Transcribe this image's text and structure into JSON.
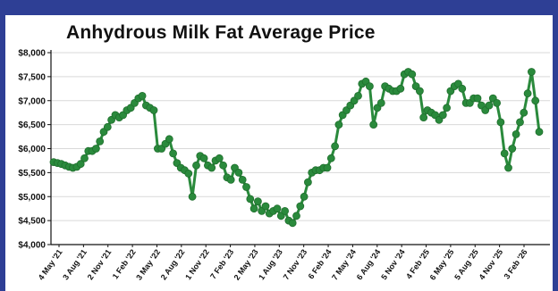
{
  "colors": {
    "frame": "#2e3f95",
    "series": "#2a8a3c",
    "grid": "#d9d9d9",
    "text": "#111111"
  },
  "chart_data": {
    "type": "line",
    "title": "Anhydrous Milk Fat Average Price",
    "xlabel": "",
    "ylabel": "",
    "ylim": [
      4000,
      8000
    ],
    "y_ticks": [
      "$4,000",
      "$4,500",
      "$5,000",
      "$5,500",
      "$6,000",
      "$6,500",
      "$7,000",
      "$7,500",
      "$8,000"
    ],
    "x_ticks": [
      "4 May '21",
      "3 Aug '21",
      "2 Nov '21",
      "1 Feb '22",
      "3 May '22",
      "2 Aug '22",
      "1 Nov '22",
      "7 Feb '23",
      "2 May '23",
      "1 Aug '23",
      "7 Nov '23",
      "6 Feb '24",
      "7 May '24",
      "6 Aug '24",
      "5 Nov '24",
      "4 Feb '25",
      "6 May '25",
      "5 Aug '25",
      "4 Nov '25",
      "3 Feb '26"
    ],
    "grid": true,
    "legend": "none",
    "series": [
      {
        "values": [
          5720,
          5700,
          5680,
          5650,
          5620,
          5600,
          5620,
          5680,
          5800,
          5950,
          5950,
          6000,
          6150,
          6350,
          6450,
          6600,
          6700,
          6650,
          6700,
          6800,
          6850,
          6950,
          7050,
          7100,
          6900,
          6850,
          6800,
          6000,
          6000,
          6100,
          6200,
          5900,
          5700,
          5600,
          5550,
          5480,
          5000,
          5650,
          5850,
          5800,
          5650,
          5600,
          5750,
          5800,
          5650,
          5400,
          5350,
          5600,
          5500,
          5350,
          5200,
          4950,
          4750,
          4900,
          4700,
          4800,
          4650,
          4700,
          4750,
          4600,
          4700,
          4500,
          4450,
          4600,
          4800,
          5000,
          5300,
          5500,
          5550,
          5550,
          5600,
          5600,
          5800,
          6050,
          6500,
          6700,
          6800,
          6900,
          7000,
          7100,
          7350,
          7400,
          7300,
          6500,
          6850,
          6950,
          7300,
          7250,
          7200,
          7200,
          7250,
          7550,
          7600,
          7550,
          7300,
          7200,
          6650,
          6800,
          6750,
          6700,
          6600,
          6700,
          6850,
          7200,
          7300,
          7350,
          7250,
          6950,
          6950,
          7050,
          7050,
          6900,
          6800,
          6900,
          7050,
          6950,
          6550,
          5900,
          5600,
          6000,
          6300,
          6550,
          6750,
          7150,
          7600,
          7000,
          6350
        ]
      }
    ]
  }
}
